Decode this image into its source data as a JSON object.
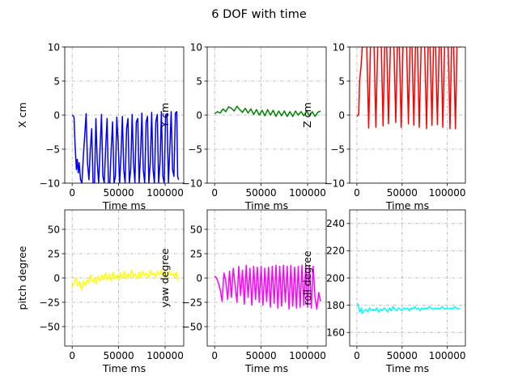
{
  "figure": {
    "title": "6 DOF with time"
  },
  "chart_data": [
    {
      "type": "line",
      "id": "x",
      "xlabel": "Time  ms",
      "ylabel": "X  cm",
      "xlim": [
        -8000,
        120000
      ],
      "ylim": [
        -10,
        10
      ],
      "xticks": [
        0,
        50000,
        100000
      ],
      "xtick_labels": [
        "0",
        "50000",
        "100000"
      ],
      "yticks": [
        -10,
        -5,
        0,
        5,
        10
      ],
      "ytick_labels": [
        "−10",
        "−5",
        "0",
        "5",
        "10"
      ],
      "grid": true,
      "series": [
        {
          "color": "#0000ff",
          "x": [
            0,
            2000,
            3000,
            4500,
            5500,
            6500,
            7500,
            9000,
            10500,
            12000,
            13500,
            15000,
            16500,
            18000,
            19500,
            21000,
            22500,
            24000,
            25500,
            27000,
            28500,
            30000,
            31500,
            33000,
            34500,
            36000,
            37500,
            39000,
            40500,
            42000,
            43500,
            45000,
            46500,
            48000,
            49500,
            51000,
            52500,
            54000,
            55500,
            57000,
            58500,
            60000,
            61500,
            63000,
            64500,
            66000,
            67500,
            69000,
            70500,
            72000,
            73500,
            75000,
            76500,
            78000,
            79500,
            81000,
            82500,
            84000,
            85500,
            87000,
            88500,
            90000,
            91500,
            93000,
            94500,
            96000,
            97500,
            99000,
            100500,
            102000,
            103500,
            105000,
            106500,
            108000,
            109500,
            111000,
            112500,
            113500,
            114500
          ],
          "y": [
            0,
            -0.3,
            -4,
            -8,
            -6.5,
            -8.5,
            -7,
            -9.5,
            -10,
            -6,
            -3,
            0.2,
            -7,
            -9.5,
            -5,
            -2,
            -10,
            -10,
            -0.5,
            -7,
            -10,
            -5,
            0.1,
            -9,
            -10,
            -5,
            -0.5,
            -10,
            -10,
            -5,
            -1,
            -10,
            -9,
            -0.3,
            -4,
            -10,
            -6,
            -0.2,
            -8,
            -10,
            -2,
            -0.5,
            -10,
            -8,
            0.1,
            -7,
            -10,
            -1,
            -0.5,
            -10,
            -6,
            0.3,
            -8,
            -10,
            -1,
            -0.2,
            -10,
            -7,
            0.4,
            -8,
            -10,
            -1,
            0.1,
            -10,
            -7,
            0.5,
            -9,
            -10,
            0,
            0.2,
            -10,
            -5,
            0.5,
            -8,
            -9,
            0.3,
            0.5,
            -9,
            -9.5
          ]
        }
      ]
    },
    {
      "type": "line",
      "id": "y",
      "xlabel": "Time  ms",
      "ylabel": "Y  cm",
      "xlim": [
        -8000,
        120000
      ],
      "ylim": [
        -10,
        10
      ],
      "xticks": [
        0,
        50000,
        100000
      ],
      "xtick_labels": [
        "0",
        "50000",
        "100000"
      ],
      "yticks": [
        -10,
        -5,
        0,
        5,
        10
      ],
      "ytick_labels": [
        "−10",
        "−5",
        "0",
        "5",
        "10"
      ],
      "grid": true,
      "series": [
        {
          "color": "#008000",
          "x": [
            0,
            3000,
            6000,
            9000,
            12000,
            15000,
            18000,
            21000,
            24000,
            27000,
            30000,
            33000,
            36000,
            39000,
            42000,
            45000,
            48000,
            51000,
            54000,
            57000,
            60000,
            63000,
            66000,
            69000,
            72000,
            75000,
            78000,
            81000,
            84000,
            87000,
            90000,
            93000,
            96000,
            99000,
            102000,
            105000,
            108000,
            111000,
            114000
          ],
          "y": [
            0.2,
            0.5,
            0.3,
            0.9,
            0.5,
            1.2,
            1.0,
            0.6,
            1.3,
            0.8,
            0.4,
            1.0,
            0.3,
            0.9,
            0.1,
            0.8,
            0.0,
            0.7,
            -0.1,
            0.8,
            0.0,
            0.7,
            -0.2,
            0.6,
            -0.1,
            0.6,
            -0.2,
            0.5,
            -0.2,
            0.6,
            0.0,
            0.5,
            -0.1,
            0.6,
            -0.1,
            0.5,
            -0.2,
            0.4,
            0.6
          ]
        }
      ]
    },
    {
      "type": "line",
      "id": "z",
      "xlabel": "Time  ms",
      "ylabel": "Z  cm",
      "xlim": [
        -8000,
        120000
      ],
      "ylim": [
        -10,
        10
      ],
      "xticks": [
        0,
        50000,
        100000
      ],
      "xtick_labels": [
        "0",
        "50000",
        "100000"
      ],
      "yticks": [
        -10,
        -5,
        0,
        5,
        10
      ],
      "ytick_labels": [
        "−10",
        "−5",
        "0",
        "5",
        "10"
      ],
      "grid": true,
      "series": [
        {
          "color": "#ff0000",
          "x": [
            0,
            2000,
            3000,
            4500,
            6000,
            7500,
            9000,
            11000,
            13000,
            15000,
            17000,
            19000,
            21000,
            23000,
            25000,
            27000,
            29000,
            31000,
            33000,
            35000,
            37000,
            39000,
            41000,
            43000,
            45000,
            47000,
            49000,
            51000,
            53000,
            55000,
            57000,
            59000,
            61000,
            63000,
            65000,
            67000,
            69000,
            71000,
            73000,
            75000,
            77000,
            79000,
            81000,
            83000,
            85000,
            87000,
            89000,
            91000,
            93000,
            95000,
            97000,
            99000,
            101000,
            103000,
            105000,
            107000,
            109000,
            111000,
            113000,
            114500
          ],
          "y": [
            -0.2,
            0.1,
            5,
            7,
            10,
            10,
            12,
            10,
            -1.9,
            10,
            12,
            10,
            -1.8,
            10,
            12,
            10,
            -1.6,
            12,
            10,
            -1.3,
            10,
            12,
            10,
            -1.1,
            12,
            10,
            -1.8,
            10,
            12,
            10,
            -1.3,
            12,
            10,
            -1.5,
            12,
            10,
            -1.8,
            10,
            12,
            10,
            -2.0,
            12,
            10,
            -1.5,
            12,
            10,
            -1.4,
            10,
            12,
            -1.8,
            10,
            12,
            10,
            -2.0,
            12,
            10,
            -2.0,
            12,
            10,
            10
          ]
        }
      ]
    },
    {
      "type": "line",
      "id": "pitch",
      "xlabel": "Time  ms",
      "ylabel": "pitch  degree",
      "xlim": [
        -8000,
        120000
      ],
      "ylim": [
        -70,
        70
      ],
      "xticks": [
        0,
        50000,
        100000
      ],
      "xtick_labels": [
        "0",
        "50000",
        "100000"
      ],
      "yticks": [
        -50,
        -25,
        0,
        25,
        50
      ],
      "ytick_labels": [
        "−50",
        "−25",
        "0",
        "25",
        "50"
      ],
      "grid": true,
      "series": [
        {
          "color": "#ffff00",
          "x": [
            0,
            2000,
            4000,
            6000,
            8000,
            10000,
            12000,
            14000,
            16000,
            18000,
            20000,
            22000,
            24000,
            26000,
            28000,
            30000,
            32000,
            34000,
            36000,
            38000,
            40000,
            42000,
            44000,
            46000,
            48000,
            50000,
            52000,
            54000,
            56000,
            58000,
            60000,
            62000,
            64000,
            66000,
            68000,
            70000,
            72000,
            74000,
            76000,
            78000,
            80000,
            82000,
            84000,
            86000,
            88000,
            90000,
            92000,
            94000,
            96000,
            98000,
            100000,
            102000,
            104000,
            106000,
            108000,
            110000,
            112000,
            114000
          ],
          "y": [
            -10,
            -5,
            0,
            -8,
            -4,
            -12,
            -3,
            -8,
            -2,
            -5,
            3,
            -4,
            -1,
            -6,
            2,
            -3,
            3,
            -2,
            5,
            -2,
            4,
            -3,
            6,
            -1,
            3,
            -2,
            5,
            0,
            7,
            -1,
            4,
            0,
            8,
            1,
            4,
            -1,
            6,
            0,
            7,
            2,
            5,
            0,
            8,
            3,
            5,
            1,
            7,
            3,
            8,
            2,
            6,
            0,
            7,
            3,
            5,
            1,
            6,
            -3
          ]
        }
      ]
    },
    {
      "type": "line",
      "id": "yaw",
      "xlabel": "Time  ms",
      "ylabel": "yaw  degree",
      "xlim": [
        -8000,
        120000
      ],
      "ylim": [
        -70,
        70
      ],
      "xticks": [
        0,
        50000,
        100000
      ],
      "xtick_labels": [
        "0",
        "50000",
        "100000"
      ],
      "yticks": [
        -50,
        -25,
        0,
        25,
        50
      ],
      "ytick_labels": [
        "−50",
        "−25",
        "0",
        "25",
        "50"
      ],
      "grid": true,
      "series": [
        {
          "color": "#ff00ff",
          "x": [
            0,
            2000,
            4000,
            6000,
            8000,
            10000,
            12000,
            14000,
            16000,
            18000,
            20000,
            22000,
            24000,
            26000,
            28000,
            30000,
            32000,
            34000,
            36000,
            38000,
            40000,
            42000,
            44000,
            46000,
            48000,
            50000,
            52000,
            54000,
            56000,
            58000,
            60000,
            62000,
            64000,
            66000,
            68000,
            70000,
            72000,
            74000,
            76000,
            78000,
            80000,
            82000,
            84000,
            86000,
            88000,
            90000,
            92000,
            94000,
            96000,
            98000,
            100000,
            102000,
            104000,
            106000,
            108000,
            110000,
            112000,
            114000
          ],
          "y": [
            2,
            0,
            -5,
            -12,
            -24,
            5,
            -3,
            -22,
            7,
            -20,
            10,
            -8,
            -25,
            12,
            -18,
            8,
            -27,
            13,
            -20,
            10,
            -28,
            12,
            -22,
            11,
            -25,
            12,
            -28,
            10,
            -24,
            11,
            -30,
            12,
            -26,
            13,
            -31,
            12,
            -29,
            13,
            -25,
            12,
            -32,
            13,
            -29,
            11,
            -31,
            12,
            -30,
            13,
            -28,
            12,
            -30,
            13,
            -31,
            12,
            -20,
            -32,
            -15,
            -24
          ]
        }
      ]
    },
    {
      "type": "line",
      "id": "roll",
      "xlabel": "Time  ms",
      "ylabel": "roll  degree",
      "xlim": [
        -8000,
        120000
      ],
      "ylim": [
        150,
        250
      ],
      "xticks": [
        0,
        50000,
        100000
      ],
      "xtick_labels": [
        "0",
        "50000",
        "100000"
      ],
      "yticks": [
        160,
        180,
        200,
        220,
        240
      ],
      "ytick_labels": [
        "160",
        "180",
        "200",
        "220",
        "240"
      ],
      "grid": true,
      "series": [
        {
          "color": "#00ffff",
          "x": [
            0,
            1000,
            2000,
            3000,
            4000,
            5000,
            6000,
            8000,
            10000,
            12000,
            14000,
            16000,
            18000,
            20000,
            22000,
            24000,
            26000,
            28000,
            30000,
            32000,
            34000,
            36000,
            38000,
            40000,
            42000,
            44000,
            46000,
            48000,
            50000,
            52000,
            54000,
            56000,
            58000,
            60000,
            62000,
            64000,
            66000,
            68000,
            70000,
            72000,
            74000,
            76000,
            78000,
            80000,
            82000,
            84000,
            86000,
            88000,
            90000,
            92000,
            94000,
            96000,
            98000,
            100000,
            102000,
            104000,
            106000,
            108000,
            110000,
            112000,
            114000
          ],
          "y": [
            181,
            181,
            179,
            175,
            176,
            178,
            174,
            176,
            177,
            175,
            178,
            176,
            177,
            176,
            178,
            175,
            177,
            176,
            178,
            177,
            175,
            178,
            176,
            179,
            177,
            176,
            178,
            177,
            176,
            178,
            177,
            178,
            176,
            178,
            177,
            179,
            177,
            178,
            176,
            178,
            177,
            178,
            177,
            179,
            178,
            177,
            178,
            177,
            178,
            177,
            179,
            178,
            177,
            178,
            177,
            178,
            177,
            179,
            178,
            177,
            178
          ]
        }
      ]
    }
  ]
}
